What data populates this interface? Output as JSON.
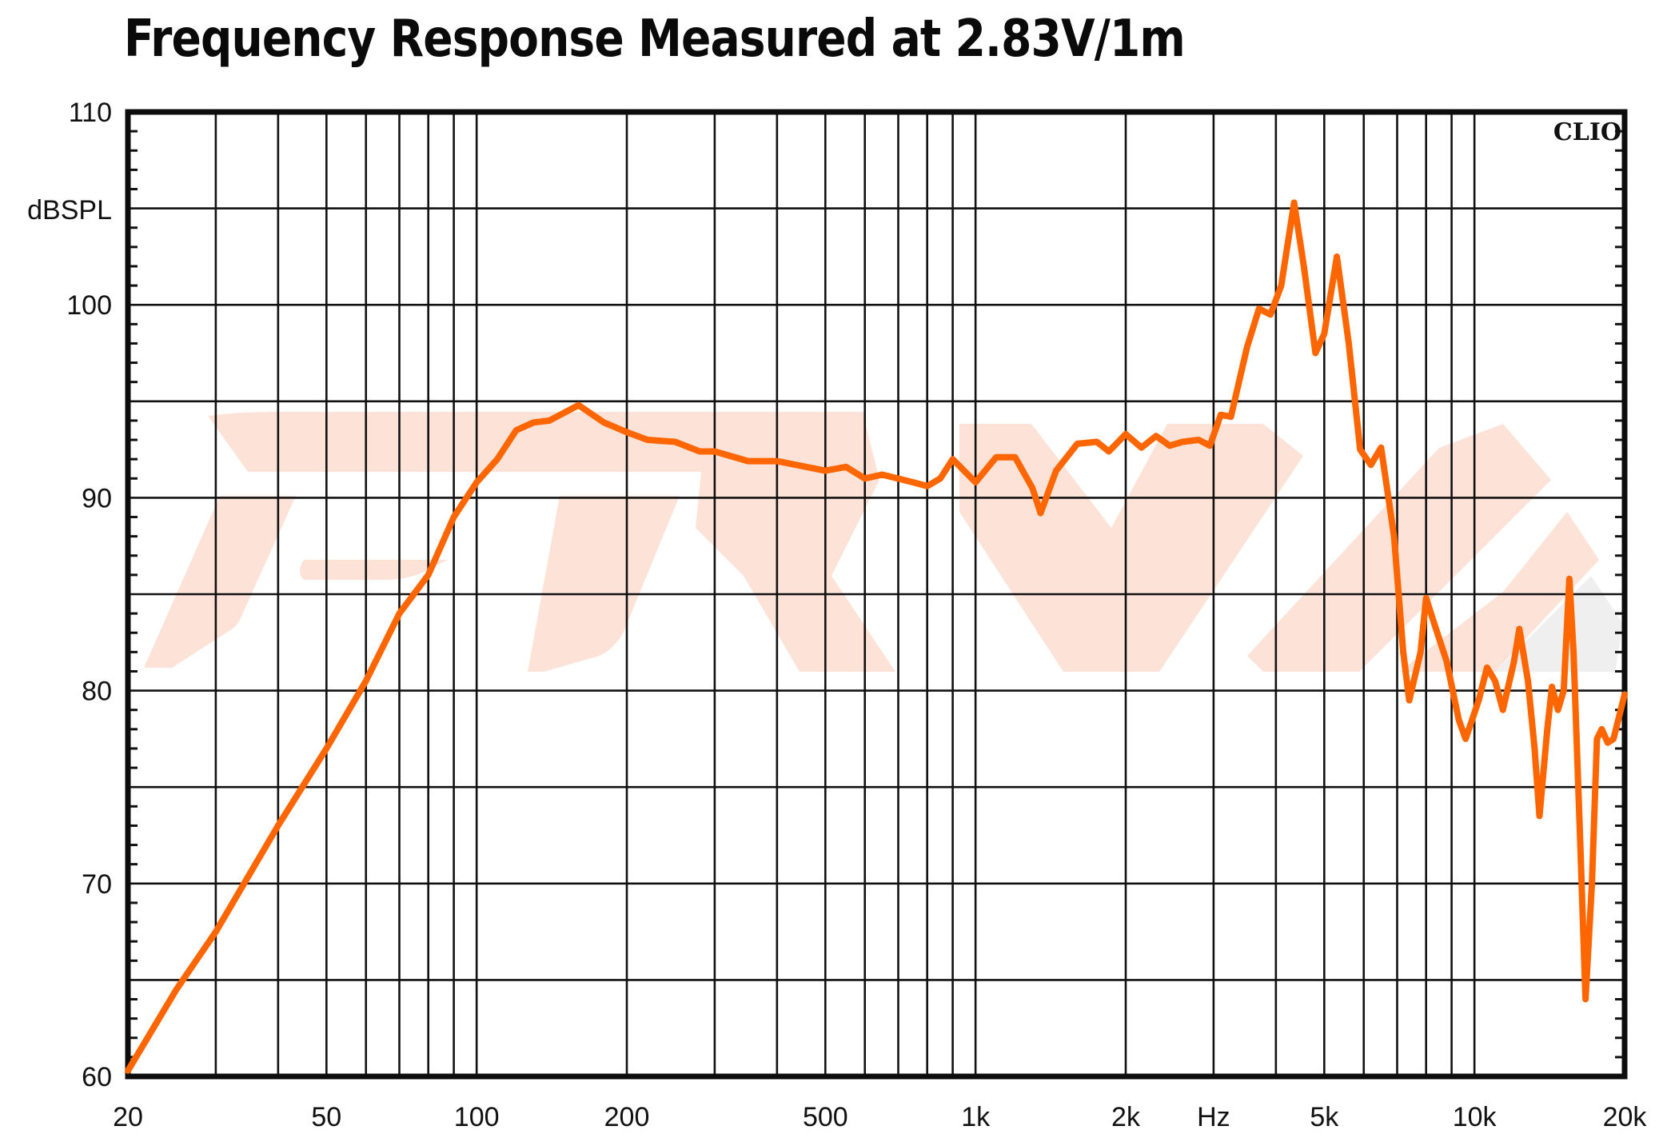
{
  "title": "Frequency Response Measured at 2.83V/1m",
  "watermark_label": "CLIO",
  "colors": {
    "curve": "#ff6600",
    "grid": "#111111",
    "watermark": "#fde2d8",
    "watermark_grey": "#efefef"
  },
  "chart_data": {
    "type": "line",
    "title": "Frequency Response Measured at 2.83V/1m",
    "xlabel": "Hz",
    "ylabel": "dBSPL",
    "xscale": "log",
    "xlim": [
      20,
      20000
    ],
    "ylim": [
      60,
      110
    ],
    "grid": true,
    "x_tick_labels": [
      "20",
      "50",
      "100",
      "200",
      "500",
      "1k",
      "2k",
      "Hz",
      "5k",
      "10k",
      "20k"
    ],
    "x_tick_values": [
      20,
      50,
      100,
      200,
      500,
      1000,
      2000,
      3000,
      5000,
      10000,
      20000
    ],
    "y_tick_labels": [
      "60",
      "70",
      "80",
      "90",
      "100",
      "110"
    ],
    "y_tick_values": [
      60,
      70,
      80,
      90,
      100,
      110
    ],
    "annotations": [
      "CLIO"
    ],
    "series": [
      {
        "name": "Frequency Response",
        "x": [
          20,
          25,
          30,
          40,
          50,
          60,
          70,
          80,
          90,
          100,
          110,
          120,
          130,
          140,
          160,
          180,
          200,
          220,
          250,
          280,
          300,
          350,
          400,
          500,
          550,
          600,
          650,
          750,
          800,
          850,
          900,
          1000,
          1100,
          1200,
          1300,
          1350,
          1450,
          1600,
          1750,
          1850,
          2000,
          2150,
          2300,
          2450,
          2600,
          2800,
          2950,
          3100,
          3250,
          3500,
          3700,
          3900,
          4100,
          4350,
          4550,
          4800,
          5000,
          5300,
          5600,
          5900,
          6200,
          6500,
          6900,
          7200,
          7400,
          7800,
          8000,
          8300,
          8800,
          9300,
          9600,
          10200,
          10600,
          11000,
          11400,
          12000,
          12300,
          12800,
          13200,
          13500,
          14000,
          14300,
          14700,
          15100,
          15500,
          15800,
          16300,
          16700,
          17200,
          17600,
          18000,
          18500,
          19000,
          20000
        ],
        "y": [
          60.3,
          64.5,
          67.5,
          73,
          77,
          80.5,
          84,
          86,
          89,
          90.8,
          92,
          93.5,
          93.9,
          94.0,
          94.8,
          93.9,
          93.4,
          93.0,
          92.9,
          92.4,
          92.4,
          91.9,
          91.9,
          91.4,
          91.6,
          91.0,
          91.2,
          90.8,
          90.6,
          91.0,
          92.0,
          90.8,
          92.1,
          92.1,
          90.5,
          89.2,
          91.4,
          92.8,
          92.9,
          92.4,
          93.3,
          92.6,
          93.2,
          92.7,
          92.9,
          93.0,
          92.7,
          94.3,
          94.2,
          97.8,
          99.8,
          99.5,
          101,
          105.3,
          102,
          97.5,
          98.5,
          102.5,
          98,
          92.5,
          91.7,
          92.6,
          88,
          82,
          79.5,
          82,
          84.8,
          83.5,
          81.5,
          78.5,
          77.5,
          79.5,
          81.2,
          80.5,
          79,
          81.5,
          83.2,
          80.5,
          77,
          73.5,
          78,
          80.2,
          79,
          80,
          85.8,
          82,
          72,
          64,
          70,
          77.5,
          78,
          77.3,
          77.5,
          79.8
        ]
      }
    ]
  }
}
